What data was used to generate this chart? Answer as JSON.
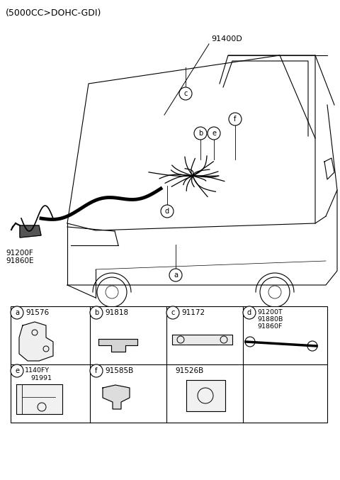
{
  "title": "(5000CC>DOHC-GDI)",
  "background_color": "#ffffff",
  "border_color": "#000000",
  "main_label": "91400D",
  "side_labels": [
    "91200F",
    "91860E"
  ],
  "callout_letters": [
    "a",
    "b",
    "c",
    "d",
    "e",
    "f"
  ],
  "table_cells": [
    {
      "letter": "a",
      "part": "91576",
      "col": 0,
      "row": 0
    },
    {
      "letter": "b",
      "part": "91818",
      "col": 1,
      "row": 0
    },
    {
      "letter": "c",
      "part": "91172",
      "col": 2,
      "row": 0
    },
    {
      "letter": "d",
      "parts": [
        "91200T",
        "91880B",
        "91860F"
      ],
      "col": 3,
      "row": 0
    },
    {
      "letter": "e",
      "parts": [
        "1140FY",
        "91991"
      ],
      "col": 0,
      "row": 1
    },
    {
      "letter": "f",
      "part": "91585B",
      "col": 1,
      "row": 1
    },
    {
      "letter": "",
      "part": "91526B",
      "col": 2,
      "row": 1
    }
  ]
}
